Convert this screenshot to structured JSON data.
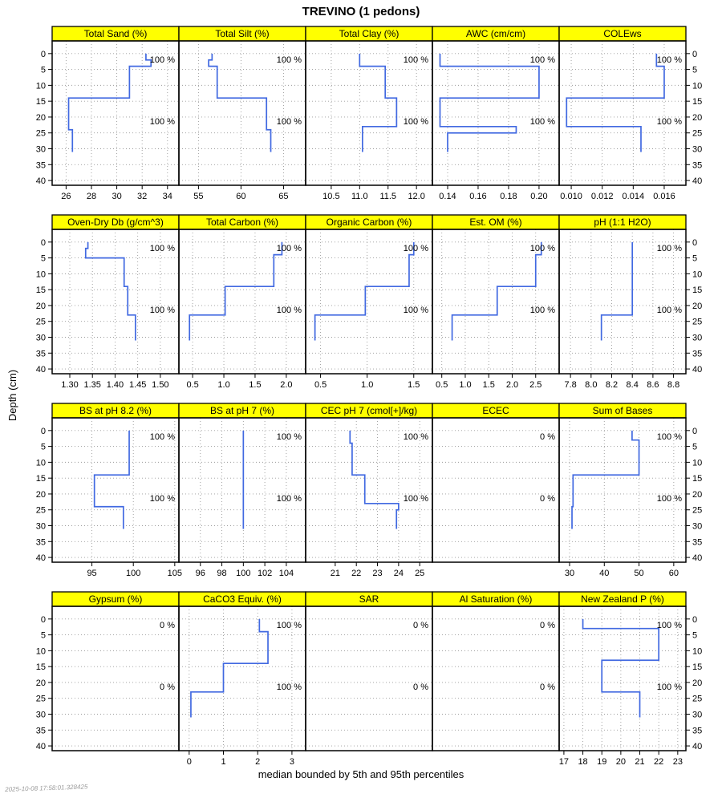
{
  "title": "TREVINO (1 pedons)",
  "caption": "median bounded by 5th and 95th percentiles",
  "timestamp": "2025-10-08 17:58:01.328425",
  "colors": {
    "strip_bg": "#FFFF00",
    "line": "#4169E1",
    "grid": "#9A9A9A",
    "frame": "#000000"
  },
  "chart_data": {
    "type": "line",
    "subtype": "soil-depth-profiles",
    "grid": "dotted",
    "y_axis": {
      "label": "Depth (cm)",
      "unit": "cm",
      "ticks": [
        0,
        5,
        10,
        15,
        20,
        25,
        30,
        35,
        40
      ],
      "range": [
        -4,
        41.5
      ]
    },
    "rows": [
      {
        "panels": [
          {
            "title": "Total Sand (%)",
            "xlim": [
              24.9,
              34.9
            ],
            "tick_values": [
              26,
              28,
              30,
              32,
              34
            ],
            "tick_labels": [
              "26",
              "28",
              "30",
              "32",
              "34"
            ],
            "horizons_top_bottom_value": [
              [
                0,
                2,
                32.3
              ],
              [
                2,
                4,
                32.7
              ],
              [
                4,
                14,
                31.0
              ],
              [
                14,
                24,
                26.2
              ],
              [
                24,
                31,
                26.5
              ]
            ],
            "annotations": [
              {
                "depth": 1.8,
                "text": "100 %"
              },
              {
                "depth": 21.3,
                "text": "100 %"
              }
            ]
          },
          {
            "title": "Total Silt (%)",
            "xlim": [
              52.7,
              67.6
            ],
            "tick_values": [
              55,
              60,
              65
            ],
            "tick_labels": [
              "55",
              "60",
              "65"
            ],
            "horizons_top_bottom_value": [
              [
                0,
                2,
                56.6
              ],
              [
                2,
                4,
                56.2
              ],
              [
                4,
                14,
                57.2
              ],
              [
                14,
                24,
                63.0
              ],
              [
                24,
                31,
                63.5
              ]
            ],
            "annotations": [
              {
                "depth": 1.8,
                "text": "100 %"
              },
              {
                "depth": 21.3,
                "text": "100 %"
              }
            ]
          },
          {
            "title": "Total Clay (%)",
            "xlim": [
              10.05,
              12.28
            ],
            "tick_values": [
              10.5,
              11.0,
              11.5,
              12.0
            ],
            "tick_labels": [
              "10.5",
              "11.0",
              "11.5",
              "12.0"
            ],
            "horizons_top_bottom_value": [
              [
                0,
                4,
                11.0
              ],
              [
                4,
                14,
                11.45
              ],
              [
                14,
                23,
                11.65
              ],
              [
                23,
                31,
                11.05
              ]
            ],
            "annotations": [
              {
                "depth": 1.8,
                "text": "100 %"
              },
              {
                "depth": 21.3,
                "text": "100 %"
              }
            ]
          },
          {
            "title": "AWC (cm/cm)",
            "xlim": [
              0.13,
              0.2132
            ],
            "tick_values": [
              0.14,
              0.16,
              0.18,
              0.2
            ],
            "tick_labels": [
              "0.14",
              "0.16",
              "0.18",
              "0.20"
            ],
            "horizons_top_bottom_value": [
              [
                0,
                4,
                0.135
              ],
              [
                4,
                14,
                0.2
              ],
              [
                14,
                23,
                0.135
              ],
              [
                23,
                25,
                0.185
              ],
              [
                25,
                31,
                0.14
              ]
            ],
            "annotations": [
              {
                "depth": 1.8,
                "text": "100 %"
              },
              {
                "depth": 21.3,
                "text": "100 %"
              }
            ]
          },
          {
            "title": "COLEws",
            "xlim": [
              0.00922,
              0.0174
            ],
            "tick_values": [
              0.01,
              0.012,
              0.014,
              0.016
            ],
            "tick_labels": [
              "0.010",
              "0.012",
              "0.014",
              "0.016"
            ],
            "horizons_top_bottom_value": [
              [
                0,
                4,
                0.0155
              ],
              [
                4,
                14,
                0.016
              ],
              [
                14,
                23,
                0.0097
              ],
              [
                23,
                31,
                0.0145
              ]
            ],
            "annotations": [
              {
                "depth": 1.8,
                "text": "100 %"
              },
              {
                "depth": 21.3,
                "text": "100 %"
              }
            ]
          }
        ]
      },
      {
        "panels": [
          {
            "title": "Oven-Dry Db (g/cm^3)",
            "xlim": [
              1.261,
              1.541
            ],
            "tick_values": [
              1.3,
              1.35,
              1.4,
              1.45,
              1.5
            ],
            "tick_labels": [
              "1.30",
              "1.35",
              "1.40",
              "1.45",
              "1.50"
            ],
            "horizons_top_bottom_value": [
              [
                0,
                2,
                1.34
              ],
              [
                2,
                5,
                1.335
              ],
              [
                5,
                14,
                1.42
              ],
              [
                14,
                23,
                1.428
              ],
              [
                23,
                31,
                1.445
              ]
            ],
            "annotations": [
              {
                "depth": 1.8,
                "text": "100 %"
              },
              {
                "depth": 21.3,
                "text": "100 %"
              }
            ]
          },
          {
            "title": "Total Carbon (%)",
            "xlim": [
              0.28,
              2.31
            ],
            "tick_values": [
              0.5,
              1.0,
              1.5,
              2.0
            ],
            "tick_labels": [
              "0.5",
              "1.0",
              "1.5",
              "2.0"
            ],
            "horizons_top_bottom_value": [
              [
                0,
                4,
                1.93
              ],
              [
                4,
                14,
                1.8
              ],
              [
                14,
                23,
                1.02
              ],
              [
                23,
                31,
                0.45
              ]
            ],
            "annotations": [
              {
                "depth": 1.8,
                "text": "100 %"
              },
              {
                "depth": 21.3,
                "text": "100 %"
              }
            ]
          },
          {
            "title": "Organic Carbon (%)",
            "xlim": [
              0.34,
              1.7
            ],
            "tick_values": [
              0.5,
              1.0,
              1.5
            ],
            "tick_labels": [
              "0.5",
              "1.0",
              "1.5"
            ],
            "horizons_top_bottom_value": [
              [
                0,
                4,
                1.5
              ],
              [
                4,
                14,
                1.45
              ],
              [
                14,
                23,
                0.98
              ],
              [
                23,
                31,
                0.44
              ]
            ],
            "annotations": [
              {
                "depth": 1.8,
                "text": "100 %"
              },
              {
                "depth": 21.3,
                "text": "100 %"
              }
            ]
          },
          {
            "title": "Est. OM (%)",
            "xlim": [
              0.3,
              3.0
            ],
            "tick_values": [
              0.5,
              1.0,
              1.5,
              2.0,
              2.5
            ],
            "tick_labels": [
              "0.5",
              "1.0",
              "1.5",
              "2.0",
              "2.5"
            ],
            "horizons_top_bottom_value": [
              [
                0,
                4,
                2.62
              ],
              [
                4,
                14,
                2.5
              ],
              [
                14,
                23,
                1.68
              ],
              [
                23,
                31,
                0.72
              ]
            ],
            "annotations": [
              {
                "depth": 1.8,
                "text": "100 %"
              },
              {
                "depth": 21.3,
                "text": "100 %"
              }
            ]
          },
          {
            "title": "pH (1:1 H2O)",
            "xlim": [
              7.69,
              8.92
            ],
            "tick_values": [
              7.8,
              8.0,
              8.2,
              8.4,
              8.6,
              8.8
            ],
            "tick_labels": [
              "7.8",
              "8.0",
              "8.2",
              "8.4",
              "8.6",
              "8.8"
            ],
            "horizons_top_bottom_value": [
              [
                0,
                23,
                8.4
              ],
              [
                23,
                31,
                8.1
              ]
            ],
            "annotations": [
              {
                "depth": 1.8,
                "text": "100 %"
              },
              {
                "depth": 21.3,
                "text": "100 %"
              }
            ]
          }
        ]
      },
      {
        "panels": [
          {
            "title": "BS at pH 8.2 (%)",
            "xlim": [
              90.2,
              105.5
            ],
            "tick_values": [
              95,
              100,
              105
            ],
            "tick_labels": [
              "95",
              "100",
              "105"
            ],
            "horizons_top_bottom_value": [
              [
                0,
                14,
                99.5
              ],
              [
                14,
                24,
                95.3
              ],
              [
                24,
                31,
                98.8
              ]
            ],
            "annotations": [
              {
                "depth": 1.8,
                "text": "100 %"
              },
              {
                "depth": 21.3,
                "text": "100 %"
              }
            ]
          },
          {
            "title": "BS at pH 7 (%)",
            "xlim": [
              94.0,
              105.8
            ],
            "tick_values": [
              96,
              98,
              100,
              102,
              104
            ],
            "tick_labels": [
              "96",
              "98",
              "100",
              "102",
              "104"
            ],
            "horizons_top_bottom_value": [
              [
                0,
                31,
                100
              ]
            ],
            "annotations": [
              {
                "depth": 1.8,
                "text": "100 %"
              },
              {
                "depth": 21.3,
                "text": "100 %"
              }
            ]
          },
          {
            "title": "CEC pH 7 (cmol[+]/kg)",
            "xlim": [
              19.6,
              25.6
            ],
            "tick_values": [
              21,
              22,
              23,
              24,
              25
            ],
            "tick_labels": [
              "21",
              "22",
              "23",
              "24",
              "25"
            ],
            "horizons_top_bottom_value": [
              [
                0,
                4,
                21.7
              ],
              [
                4,
                14,
                21.8
              ],
              [
                14,
                23,
                22.4
              ],
              [
                23,
                25,
                24.0
              ],
              [
                25,
                31,
                23.9
              ]
            ],
            "annotations": [
              {
                "depth": 1.8,
                "text": "100 %"
              },
              {
                "depth": 21.3,
                "text": "100 %"
              }
            ]
          },
          {
            "title": "ECEC",
            "xlim": [
              0,
              1
            ],
            "tick_values": [],
            "tick_labels": [],
            "horizons_top_bottom_value": [],
            "annotations": [
              {
                "depth": 1.8,
                "text": "0 %"
              },
              {
                "depth": 21.3,
                "text": "0 %"
              }
            ]
          },
          {
            "title": "Sum of Bases",
            "xlim": [
              27.0,
              63.5
            ],
            "tick_values": [
              30,
              40,
              50,
              60
            ],
            "tick_labels": [
              "30",
              "40",
              "50",
              "60"
            ],
            "horizons_top_bottom_value": [
              [
                0,
                3,
                48
              ],
              [
                3,
                14,
                50
              ],
              [
                14,
                24,
                31
              ],
              [
                24,
                31,
                30.7
              ]
            ],
            "annotations": [
              {
                "depth": 1.8,
                "text": "100 %"
              },
              {
                "depth": 21.3,
                "text": "100 %"
              }
            ]
          }
        ]
      },
      {
        "panels": [
          {
            "title": "Gypsum (%)",
            "xlim": [
              0,
              1
            ],
            "tick_values": [],
            "tick_labels": [],
            "horizons_top_bottom_value": [],
            "annotations": [
              {
                "depth": 1.8,
                "text": "0 %"
              },
              {
                "depth": 21.3,
                "text": "0 %"
              }
            ]
          },
          {
            "title": "CaCO3 Equiv. (%)",
            "xlim": [
              -0.3,
              3.4
            ],
            "tick_values": [
              0,
              1,
              2,
              3
            ],
            "tick_labels": [
              "0",
              "1",
              "2",
              "3"
            ],
            "horizons_top_bottom_value": [
              [
                0,
                4,
                2.05
              ],
              [
                4,
                14,
                2.3
              ],
              [
                14,
                23,
                1.0
              ],
              [
                23,
                31,
                0.05
              ]
            ],
            "annotations": [
              {
                "depth": 1.8,
                "text": "100 %"
              },
              {
                "depth": 21.3,
                "text": "100 %"
              }
            ]
          },
          {
            "title": "SAR",
            "xlim": [
              0,
              1
            ],
            "tick_values": [],
            "tick_labels": [],
            "horizons_top_bottom_value": [],
            "annotations": [
              {
                "depth": 1.8,
                "text": "0 %"
              },
              {
                "depth": 21.3,
                "text": "0 %"
              }
            ]
          },
          {
            "title": "Al Saturation (%)",
            "xlim": [
              0,
              1
            ],
            "tick_values": [],
            "tick_labels": [],
            "horizons_top_bottom_value": [],
            "annotations": [
              {
                "depth": 1.8,
                "text": "0 %"
              },
              {
                "depth": 21.3,
                "text": "0 %"
              }
            ]
          },
          {
            "title": "New Zealand P (%)",
            "xlim": [
              16.75,
              23.43
            ],
            "tick_values": [
              17,
              18,
              19,
              20,
              21,
              22,
              23
            ],
            "tick_labels": [
              "17",
              "18",
              "19",
              "20",
              "21",
              "22",
              "23"
            ],
            "horizons_top_bottom_value": [
              [
                0,
                3,
                18.0
              ],
              [
                3,
                13,
                22.0
              ],
              [
                13,
                23,
                19.0
              ],
              [
                23,
                31,
                21.0
              ]
            ],
            "annotations": [
              {
                "depth": 1.8,
                "text": "100 %"
              },
              {
                "depth": 21.3,
                "text": "100 %"
              }
            ]
          }
        ]
      }
    ]
  }
}
